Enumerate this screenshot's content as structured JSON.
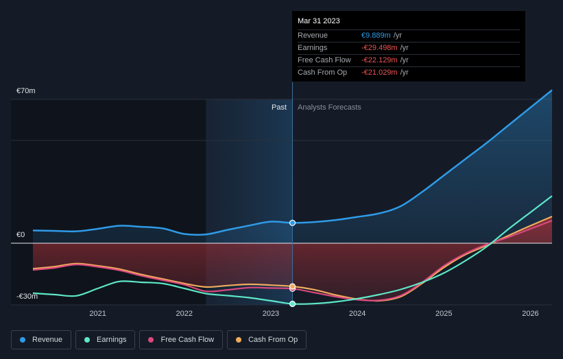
{
  "tooltip": {
    "date": "Mar 31 2023",
    "rows": [
      {
        "label": "Revenue",
        "value": "€9.889m",
        "unit": "/yr",
        "color": "#2f9be8"
      },
      {
        "label": "Earnings",
        "value": "-€29.498m",
        "unit": "/yr",
        "color": "#f05454"
      },
      {
        "label": "Free Cash Flow",
        "value": "-€22.129m",
        "unit": "/yr",
        "color": "#f05454"
      },
      {
        "label": "Cash From Op",
        "value": "-€21.029m",
        "unit": "/yr",
        "color": "#f05454"
      }
    ]
  },
  "chart_data": {
    "type": "line",
    "y_axis_labels": {
      "top": "€70m",
      "zero": "€0",
      "bottom": "-€30m"
    },
    "ylim": [
      -30,
      70
    ],
    "xlim": [
      2020.25,
      2026.25
    ],
    "x_ticks": [
      {
        "label": "2021",
        "value": 2021
      },
      {
        "label": "2022",
        "value": 2022
      },
      {
        "label": "2023",
        "value": 2023
      },
      {
        "label": "2024",
        "value": 2024
      },
      {
        "label": "2025",
        "value": 2025
      },
      {
        "label": "2026",
        "value": 2026
      }
    ],
    "past_label": "Past",
    "forecast_label": "Analysts Forecasts",
    "past_region_start": 2022.25,
    "divider_x": 2023.25,
    "series": [
      {
        "name": "Revenue",
        "color": "#2f9be8",
        "points": [
          [
            2020.25,
            6.2
          ],
          [
            2020.5,
            6.0
          ],
          [
            2020.75,
            5.8
          ],
          [
            2021.0,
            7.0
          ],
          [
            2021.25,
            8.5
          ],
          [
            2021.5,
            8.0
          ],
          [
            2021.75,
            7.2
          ],
          [
            2022.0,
            4.5
          ],
          [
            2022.25,
            4.3
          ],
          [
            2022.5,
            6.5
          ],
          [
            2022.75,
            8.6
          ],
          [
            2023.0,
            10.5
          ],
          [
            2023.25,
            9.9
          ],
          [
            2023.5,
            10.3
          ],
          [
            2023.75,
            11.3
          ],
          [
            2024.0,
            12.8
          ],
          [
            2024.25,
            14.5
          ],
          [
            2024.5,
            18.0
          ],
          [
            2024.75,
            25.0
          ],
          [
            2025.0,
            33.0
          ],
          [
            2025.25,
            41.0
          ],
          [
            2025.5,
            49.0
          ],
          [
            2025.75,
            57.5
          ],
          [
            2026.0,
            66.0
          ],
          [
            2026.25,
            74.5
          ]
        ]
      },
      {
        "name": "Earnings",
        "color": "#5ee8c8",
        "points": [
          [
            2020.25,
            -24.3
          ],
          [
            2020.5,
            -25.0
          ],
          [
            2020.75,
            -25.6
          ],
          [
            2021.0,
            -22.0
          ],
          [
            2021.25,
            -18.6
          ],
          [
            2021.5,
            -19.0
          ],
          [
            2021.75,
            -19.6
          ],
          [
            2022.0,
            -22.0
          ],
          [
            2022.25,
            -24.5
          ],
          [
            2022.5,
            -25.5
          ],
          [
            2022.75,
            -26.5
          ],
          [
            2023.0,
            -28.0
          ],
          [
            2023.25,
            -29.5
          ],
          [
            2023.5,
            -29.4
          ],
          [
            2023.75,
            -28.5
          ],
          [
            2024.0,
            -27.0
          ],
          [
            2024.25,
            -25.0
          ],
          [
            2024.5,
            -22.5
          ],
          [
            2024.75,
            -19.0
          ],
          [
            2025.0,
            -14.5
          ],
          [
            2025.25,
            -8.5
          ],
          [
            2025.5,
            -1.5
          ],
          [
            2025.75,
            7.0
          ],
          [
            2026.0,
            15.0
          ],
          [
            2026.25,
            23.0
          ]
        ]
      },
      {
        "name": "Free Cash Flow",
        "color": "#d9497e",
        "points": [
          [
            2020.25,
            -13.0
          ],
          [
            2020.5,
            -12.0
          ],
          [
            2020.75,
            -10.4
          ],
          [
            2021.0,
            -11.5
          ],
          [
            2021.25,
            -13.2
          ],
          [
            2021.5,
            -15.8
          ],
          [
            2021.75,
            -18.0
          ],
          [
            2022.0,
            -20.2
          ],
          [
            2022.25,
            -23.4
          ],
          [
            2022.5,
            -22.7
          ],
          [
            2022.75,
            -21.6
          ],
          [
            2023.0,
            -21.8
          ],
          [
            2023.25,
            -22.1
          ],
          [
            2023.5,
            -24.0
          ],
          [
            2023.75,
            -26.0
          ],
          [
            2024.0,
            -27.5
          ],
          [
            2024.25,
            -27.8
          ],
          [
            2024.5,
            -25.5
          ],
          [
            2024.75,
            -19.0
          ],
          [
            2025.0,
            -11.0
          ],
          [
            2025.25,
            -5.0
          ],
          [
            2025.5,
            -0.5
          ],
          [
            2025.75,
            3.0
          ],
          [
            2026.0,
            7.0
          ],
          [
            2026.25,
            11.0
          ]
        ]
      },
      {
        "name": "Cash From Op",
        "color": "#f0ac5d",
        "points": [
          [
            2020.25,
            -12.4
          ],
          [
            2020.5,
            -11.4
          ],
          [
            2020.75,
            -9.9
          ],
          [
            2021.0,
            -11.0
          ],
          [
            2021.25,
            -12.6
          ],
          [
            2021.5,
            -15.2
          ],
          [
            2021.75,
            -17.4
          ],
          [
            2022.0,
            -19.6
          ],
          [
            2022.25,
            -21.3
          ],
          [
            2022.5,
            -20.6
          ],
          [
            2022.75,
            -20.0
          ],
          [
            2023.0,
            -20.4
          ],
          [
            2023.25,
            -21.0
          ],
          [
            2023.5,
            -22.6
          ],
          [
            2023.75,
            -25.2
          ],
          [
            2024.0,
            -27.2
          ],
          [
            2024.25,
            -28.0
          ],
          [
            2024.5,
            -26.0
          ],
          [
            2024.75,
            -19.5
          ],
          [
            2025.0,
            -11.8
          ],
          [
            2025.25,
            -5.5
          ],
          [
            2025.5,
            -1.0
          ],
          [
            2025.75,
            3.8
          ],
          [
            2026.0,
            8.5
          ],
          [
            2026.25,
            13.0
          ]
        ]
      }
    ]
  },
  "legend": [
    {
      "label": "Revenue",
      "color": "#2f9be8"
    },
    {
      "label": "Earnings",
      "color": "#5ee8c8"
    },
    {
      "label": "Free Cash Flow",
      "color": "#d9497e"
    },
    {
      "label": "Cash From Op",
      "color": "#f0ac5d"
    }
  ]
}
